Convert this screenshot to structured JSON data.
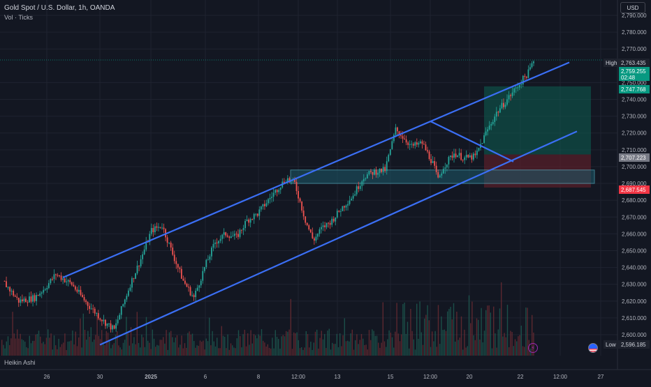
{
  "header": {
    "title": "Gold Spot / U.S. Dollar, 1h, OANDA",
    "subtitle": "Vol · Ticks"
  },
  "footer": {
    "label": "Heikin Ashi"
  },
  "currency_button": "USD",
  "colors": {
    "background": "#131722",
    "up_candle": "#26a69a",
    "down_candle": "#ef5350",
    "channel_line": "#3b6ff5",
    "zone_fill": "#1d5a6a",
    "profit_fill": "#0d5f52",
    "loss_fill": "#5a1f2a"
  },
  "axis_labels": {
    "high_label": "High",
    "low_label": "Low"
  },
  "price_tags": {
    "high": "2,763.435",
    "current": "2,759.255",
    "countdown": "02:48",
    "target": "2,747.768",
    "entry": "2,707.223",
    "stop": "2,687.545",
    "low": "2,596.185"
  },
  "chart_data": {
    "type": "candlestick",
    "title": "Gold Spot / U.S. Dollar, 1h, OANDA",
    "ylim": [
      2594,
      2796
    ],
    "y_ticks": [
      2790,
      2780,
      2770,
      2750,
      2740,
      2730,
      2720,
      2710,
      2700,
      2690,
      2680,
      2670,
      2660,
      2650,
      2640,
      2630,
      2620,
      2610,
      2600
    ],
    "y_tick_labels": [
      "2,790.000",
      "2,780.000",
      "2,770.000",
      "2,750.000",
      "2,740.000",
      "2,730.000",
      "2,720.000",
      "2,710.000",
      "2,700.000",
      "2,690.000",
      "2,680.000",
      "2,670.000",
      "2,660.000",
      "2,650.000",
      "2,640.000",
      "2,630.000",
      "2,620.000",
      "2,610.000",
      "2,600.000"
    ],
    "x_tick_labels": [
      "26",
      "30",
      "2025",
      "6",
      "8",
      "12:00",
      "13",
      "15",
      "12:00",
      "20",
      "22",
      "12:00",
      "27"
    ],
    "price_path": [
      [
        0.0,
        2632
      ],
      [
        0.03,
        2620
      ],
      [
        0.06,
        2622
      ],
      [
        0.08,
        2628
      ],
      [
        0.1,
        2636
      ],
      [
        0.13,
        2630
      ],
      [
        0.16,
        2618
      ],
      [
        0.19,
        2608
      ],
      [
        0.21,
        2603
      ],
      [
        0.24,
        2630
      ],
      [
        0.26,
        2645
      ],
      [
        0.28,
        2662
      ],
      [
        0.3,
        2665
      ],
      [
        0.32,
        2648
      ],
      [
        0.34,
        2632
      ],
      [
        0.36,
        2622
      ],
      [
        0.38,
        2640
      ],
      [
        0.4,
        2655
      ],
      [
        0.42,
        2660
      ],
      [
        0.44,
        2658
      ],
      [
        0.46,
        2668
      ],
      [
        0.48,
        2672
      ],
      [
        0.5,
        2680
      ],
      [
        0.52,
        2688
      ],
      [
        0.535,
        2693
      ],
      [
        0.55,
        2690
      ],
      [
        0.57,
        2668
      ],
      [
        0.585,
        2656
      ],
      [
        0.6,
        2663
      ],
      [
        0.62,
        2668
      ],
      [
        0.64,
        2676
      ],
      [
        0.66,
        2683
      ],
      [
        0.68,
        2694
      ],
      [
        0.7,
        2697
      ],
      [
        0.72,
        2698
      ],
      [
        0.74,
        2722
      ],
      [
        0.75,
        2719
      ],
      [
        0.77,
        2712
      ],
      [
        0.79,
        2714
      ],
      [
        0.81,
        2702
      ],
      [
        0.82,
        2692
      ],
      [
        0.83,
        2700
      ],
      [
        0.85,
        2708
      ],
      [
        0.87,
        2705
      ],
      [
        0.89,
        2706
      ],
      [
        0.91,
        2720
      ],
      [
        0.93,
        2732
      ],
      [
        0.95,
        2740
      ],
      [
        0.97,
        2748
      ],
      [
        0.99,
        2756
      ],
      [
        1.0,
        2763
      ]
    ],
    "channel": {
      "upper": [
        [
          2634,
          "2024-12-27"
        ],
        [
          2762,
          "2025-01-23"
        ]
      ],
      "lower": [
        [
          2594,
          "2024-12-30"
        ],
        [
          2721,
          "2025-01-24"
        ]
      ]
    },
    "zone": [
      2690,
      2698
    ],
    "position": {
      "entry": 2707.223,
      "target": 2747.768,
      "stop": 2687.545
    }
  }
}
